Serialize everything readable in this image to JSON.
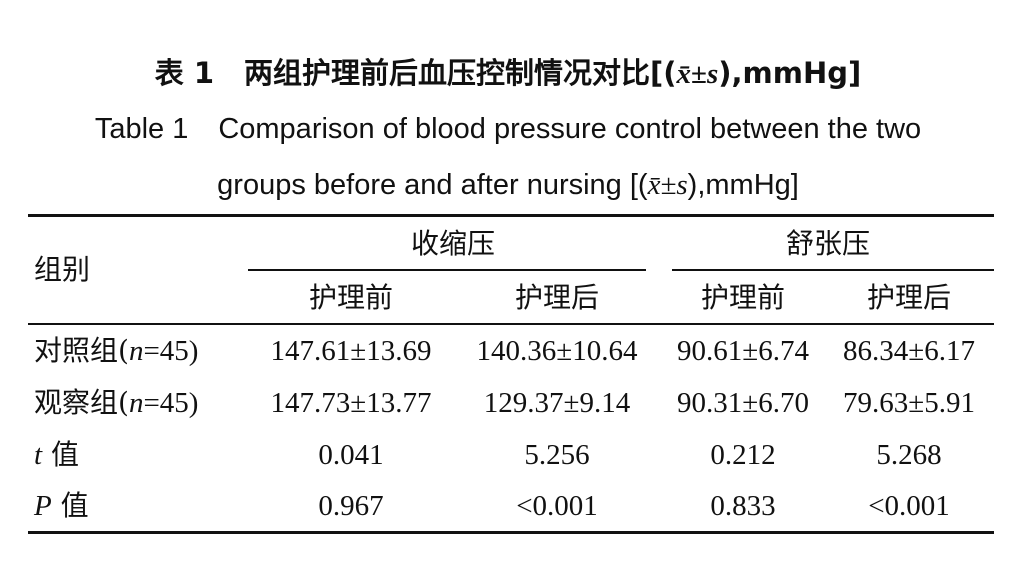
{
  "title": {
    "cn_label": "表 1",
    "cn_text": "两组护理前后血压控制情况对比[(",
    "cn_stat": "x̄±s",
    "cn_tail": "),mmHg]",
    "en_label": "Table 1",
    "en_line1": "Comparison of blood pressure control between the two",
    "en_line2_pre": "groups before and after nursing [(",
    "en_stat": "x̄±s",
    "en_tail": "),mmHg]"
  },
  "table": {
    "group_header": "组别",
    "sbp_header": "收缩压",
    "dbp_header": "舒张压",
    "sub_before": "护理前",
    "sub_after": "护理后",
    "rows": [
      {
        "label_cn": "对照组(",
        "label_n": "n",
        "label_tail": "=45)",
        "values": [
          "147.61±13.69",
          "140.36±10.64",
          "90.61±6.74",
          "86.34±6.17"
        ]
      },
      {
        "label_cn": "观察组(",
        "label_n": "n",
        "label_tail": "=45)",
        "values": [
          "147.73±13.77",
          "129.37±9.14",
          "90.31±6.70",
          "79.63±5.91"
        ]
      },
      {
        "label_sym": "t",
        "label_cn": " 值",
        "values": [
          "0.041",
          "5.256",
          "0.212",
          "5.268"
        ]
      },
      {
        "label_sym": "P",
        "label_cn": " 值",
        "values": [
          "0.967",
          "<0.001",
          "0.833",
          "<0.001"
        ]
      }
    ]
  }
}
